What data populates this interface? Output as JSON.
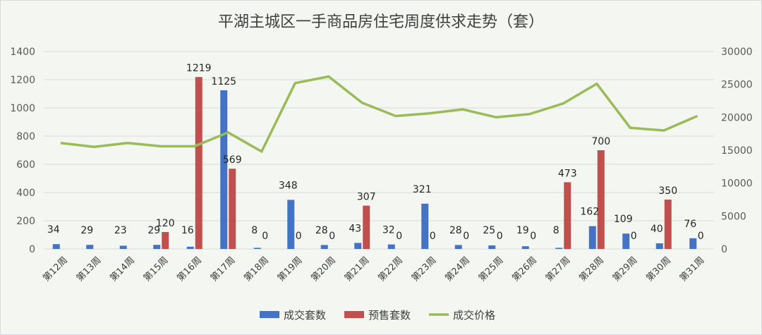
{
  "chart_data": {
    "type": "bar",
    "title": "平湖主城区一手商品房住宅周度供求走势（套）",
    "categories": [
      "第12周",
      "第13周",
      "第14周",
      "第15周",
      "第16周",
      "第17周",
      "第18周",
      "第19周",
      "第20周",
      "第21周",
      "第22周",
      "第23周",
      "第24周",
      "第25周",
      "第26周",
      "第27周",
      "第28周",
      "第29周",
      "第30周",
      "第31周"
    ],
    "series": [
      {
        "name": "成交套数",
        "kind": "bar",
        "axis": "left",
        "color": "#4472c4",
        "values": [
          34,
          29,
          23,
          29,
          16,
          1125,
          8,
          348,
          28,
          43,
          32,
          321,
          28,
          25,
          19,
          8,
          162,
          109,
          40,
          76
        ],
        "labels": [
          "34",
          "29",
          "23",
          "29",
          "16",
          "1125",
          "8",
          "348",
          "28",
          "43",
          "32",
          "321",
          "28",
          "25",
          "19",
          "8",
          "162",
          "109",
          "40",
          "76"
        ]
      },
      {
        "name": "预售套数",
        "kind": "bar",
        "axis": "left",
        "color": "#c0504d",
        "values": [
          0,
          0,
          0,
          120,
          1219,
          569,
          0,
          0,
          0,
          307,
          0,
          0,
          0,
          0,
          0,
          473,
          700,
          0,
          350,
          0
        ],
        "labels": [
          "",
          "",
          "",
          "120",
          "1219",
          "569",
          "0",
          "0",
          "0",
          "307",
          "0",
          "0",
          "0",
          "0",
          "0",
          "473",
          "700",
          "0",
          "350",
          "0"
        ]
      },
      {
        "name": "成交价格",
        "kind": "line",
        "axis": "right",
        "color": "#9bbb59",
        "values": [
          16100,
          15500,
          16100,
          15600,
          15600,
          17700,
          14800,
          25200,
          26200,
          22200,
          20200,
          20600,
          21200,
          20000,
          20500,
          22100,
          25100,
          18400,
          18000,
          20200
        ]
      }
    ],
    "y_left": {
      "min": 0,
      "max": 1400,
      "ticks": [
        "0",
        "200",
        "400",
        "600",
        "800",
        "1000",
        "1200",
        "1400"
      ]
    },
    "y_right": {
      "min": 0,
      "max": 30000,
      "ticks": [
        "0",
        "5000",
        "10000",
        "15000",
        "20000",
        "25000",
        "30000"
      ]
    },
    "grid": true,
    "legend_position": "bottom"
  }
}
